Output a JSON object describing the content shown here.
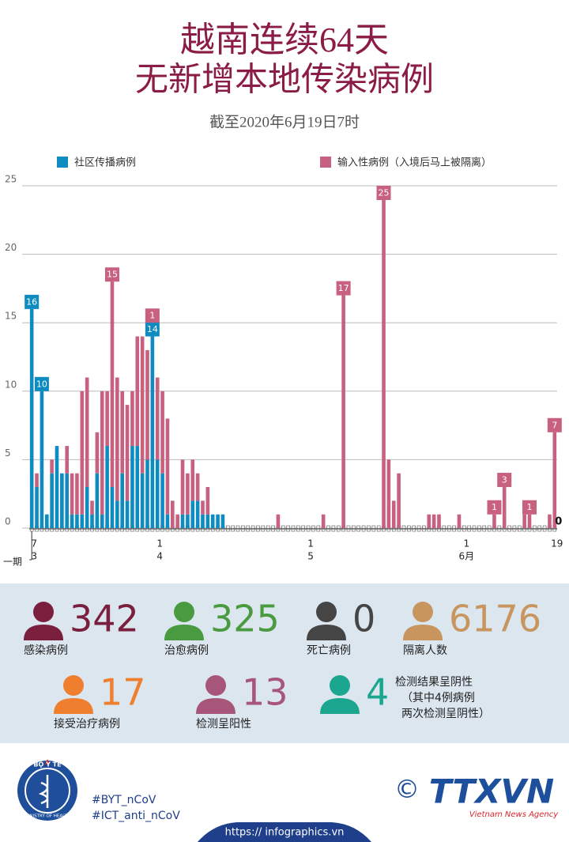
{
  "header": {
    "title_line1": "越南连续64天",
    "title_line2": "无新增本地传染病例",
    "subtitle": "截至2020年6月19日7时"
  },
  "chart_data": {
    "type": "bar",
    "stacked": true,
    "categories": [
      "7",
      null,
      null,
      null,
      null,
      null,
      null,
      null,
      null,
      null,
      null,
      null,
      null,
      null,
      null,
      null,
      null,
      null,
      null,
      null,
      null,
      null,
      null,
      null,
      null,
      "1",
      null,
      null,
      null,
      null,
      null,
      null,
      null,
      null,
      null,
      null,
      null,
      null,
      null,
      null,
      null,
      null,
      null,
      null,
      null,
      null,
      null,
      null,
      null,
      null,
      null,
      null,
      null,
      null,
      null,
      "1",
      null,
      null,
      null,
      null,
      null,
      null,
      null,
      null,
      null,
      null,
      null,
      null,
      null,
      null,
      null,
      null,
      null,
      null,
      null,
      null,
      null,
      null,
      null,
      null,
      null,
      null,
      null,
      null,
      null,
      null,
      "1",
      null,
      null,
      null,
      null,
      null,
      null,
      null,
      null,
      null,
      null,
      null,
      null,
      null,
      null,
      null,
      null,
      null,
      "19"
    ],
    "months": [
      "3",
      null,
      null,
      null,
      null,
      null,
      null,
      null,
      null,
      null,
      null,
      null,
      null,
      null,
      null,
      null,
      null,
      null,
      null,
      null,
      null,
      null,
      null,
      null,
      null,
      "4",
      null,
      null,
      null,
      null,
      null,
      null,
      null,
      null,
      null,
      null,
      null,
      null,
      null,
      null,
      null,
      null,
      null,
      null,
      null,
      null,
      null,
      null,
      null,
      null,
      null,
      null,
      null,
      null,
      null,
      "5",
      null,
      null,
      null,
      null,
      null,
      null,
      null,
      null,
      null,
      null,
      null,
      null,
      null,
      null,
      null,
      null,
      null,
      null,
      null,
      null,
      null,
      null,
      null,
      null,
      null,
      null,
      null,
      null,
      null,
      null,
      "6月",
      null,
      null,
      null,
      null,
      null,
      null,
      null,
      null,
      null,
      null,
      null,
      null,
      null,
      null,
      null,
      null,
      null,
      null
    ],
    "start_note": "一期",
    "series": [
      {
        "name": "社区传播病例",
        "color": "#0e8bc0",
        "labeled": [
          0,
          2,
          24,
          104
        ],
        "values": [
          16,
          3,
          10,
          1,
          4,
          6,
          4,
          4,
          1,
          1,
          1,
          3,
          1,
          4,
          1,
          6,
          3,
          2,
          4,
          2,
          6,
          6,
          4,
          5,
          14,
          5,
          4,
          1,
          0,
          0,
          1,
          1,
          2,
          2,
          1,
          1,
          1,
          1,
          1,
          0,
          0,
          0,
          0,
          0,
          0,
          0,
          0,
          0,
          0,
          0,
          0,
          0,
          0,
          0,
          0,
          0,
          0,
          0,
          0,
          0,
          0,
          0,
          0,
          0,
          0,
          0,
          0,
          0,
          0,
          0,
          0,
          0,
          0,
          0,
          0,
          0,
          0,
          0,
          0,
          0,
          0,
          0,
          0,
          0,
          0,
          0,
          0,
          0,
          0,
          0,
          0,
          0,
          0,
          0,
          0,
          0,
          0,
          0,
          0,
          0,
          0,
          0,
          0,
          0,
          0
        ]
      },
      {
        "name": "输入性病例（入境后马上被隔离）",
        "color": "#c8607f",
        "labeled": [
          16,
          24,
          62,
          70,
          92,
          94,
          99,
          104
        ],
        "values": [
          0,
          1,
          0,
          0,
          1,
          0,
          0,
          2,
          3,
          3,
          9,
          8,
          1,
          3,
          9,
          4,
          15,
          9,
          6,
          7,
          4,
          8,
          10,
          8,
          1,
          6,
          6,
          7,
          2,
          1,
          4,
          3,
          3,
          2,
          1,
          2,
          0,
          0,
          0,
          0,
          0,
          0,
          0,
          0,
          0,
          0,
          0,
          0,
          0,
          1,
          0,
          0,
          0,
          0,
          0,
          0,
          0,
          0,
          1,
          0,
          0,
          0,
          17,
          0,
          0,
          0,
          0,
          0,
          0,
          0,
          25,
          5,
          2,
          4,
          0,
          0,
          0,
          0,
          0,
          1,
          1,
          1,
          0,
          0,
          0,
          1,
          0,
          0,
          0,
          0,
          0,
          0,
          1,
          0,
          3,
          0,
          0,
          0,
          1,
          1,
          0,
          0,
          0,
          1,
          7
        ]
      }
    ],
    "ylim": [
      0,
      25
    ],
    "yticks": [
      0,
      5,
      10,
      15,
      20,
      25
    ],
    "grid": true
  },
  "stats": [
    {
      "value": "342",
      "label": "感染病例",
      "color": "#7a1f3d"
    },
    {
      "value": "325",
      "label": "治愈病例",
      "color": "#4a9a3f"
    },
    {
      "value": "0",
      "label": "死亡病例",
      "color": "#454545"
    },
    {
      "value": "6176",
      "label": "隔离人数",
      "color": "#c9955f"
    },
    {
      "value": "17",
      "label": "接受治疗病例",
      "color": "#ef7f2e"
    },
    {
      "value": "13",
      "label": "检测呈阳性",
      "color": "#a8557a"
    },
    {
      "value": "4",
      "label": [
        "检测结果呈阴性",
        "（其中4例病例",
        "两次检测呈阴性）"
      ],
      "color": "#1aa68f"
    }
  ],
  "footer": {
    "logo_top": "BỘ Y TẾ",
    "logo_bottom": "MINISTRY OF HEALTH",
    "tags": [
      "#BYT_nCoV",
      "#ICT_anti_nCoV"
    ],
    "copyright": "©",
    "brand": "TTXVN",
    "brand_sub": "Vietnam News Agency",
    "url": "https:// infographics.vn"
  }
}
